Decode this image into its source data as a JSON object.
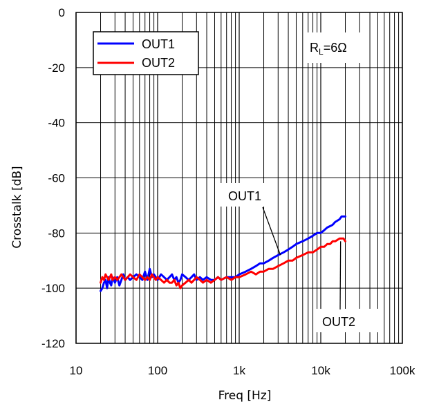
{
  "chart_data": {
    "type": "line",
    "title": "",
    "xlabel": "Freq [Hz]",
    "ylabel": "Crosstalk [dB]",
    "x_scale": "log",
    "xlim": [
      10,
      100000
    ],
    "ylim": [
      -120,
      0
    ],
    "grid": true,
    "x_ticks": [
      10,
      100,
      1000,
      10000,
      100000
    ],
    "x_tick_labels": [
      "10",
      "100",
      "1k",
      "10k",
      "100k"
    ],
    "y_ticks": [
      0,
      -20,
      -40,
      -60,
      -80,
      -100,
      -120
    ],
    "y_tick_labels": [
      "0",
      "-20",
      "-40",
      "-60",
      "-80",
      "-100",
      "-120"
    ],
    "legend_position": "top-left",
    "condition": {
      "main": "R",
      "sub": "L",
      "rest": "=6Ω"
    },
    "series": [
      {
        "name": "OUT1",
        "color": "#0000ff",
        "x": [
          20,
          21,
          22,
          23,
          24,
          25,
          26,
          27,
          28,
          30,
          32,
          34,
          36,
          38,
          40,
          43,
          46,
          50,
          55,
          60,
          65,
          70,
          75,
          80,
          85,
          90,
          95,
          100,
          110,
          120,
          130,
          140,
          150,
          160,
          170,
          180,
          190,
          200,
          220,
          240,
          260,
          280,
          300,
          330,
          360,
          400,
          450,
          500,
          550,
          600,
          700,
          800,
          900,
          1000,
          1200,
          1400,
          1600,
          1800,
          2000,
          2300,
          2600,
          3000,
          3500,
          4000,
          4500,
          5000,
          6000,
          7000,
          8000,
          9000,
          10000,
          11000,
          12000,
          13000,
          14000,
          15000,
          16000,
          17000,
          18000,
          19000,
          20000
        ],
        "y": [
          -101,
          -100,
          -98,
          -97,
          -100,
          -96,
          -98,
          -99,
          -96,
          -98,
          -96,
          -99,
          -97,
          -95,
          -97,
          -96,
          -97,
          -96,
          -95,
          -96,
          -97,
          -94,
          -97,
          -93,
          -96,
          -95,
          -96,
          -97,
          -95,
          -96,
          -97,
          -96,
          -95,
          -97,
          -96,
          -98,
          -97,
          -95,
          -96,
          -97,
          -96,
          -95,
          -97,
          -96,
          -97,
          -96,
          -97,
          -97,
          -96,
          -97,
          -96,
          -96,
          -96,
          -95,
          -94,
          -93,
          -92,
          -91,
          -91,
          -90,
          -89,
          -88,
          -87,
          -86,
          -85,
          -84,
          -83,
          -82,
          -81,
          -80,
          -80,
          -79,
          -78,
          -77.5,
          -77,
          -76,
          -75.5,
          -75,
          -74,
          -74,
          -74
        ]
      },
      {
        "name": "OUT2",
        "color": "#ff0000",
        "x": [
          20,
          21,
          22,
          23,
          24,
          25,
          26,
          27,
          28,
          30,
          32,
          34,
          36,
          38,
          40,
          43,
          46,
          50,
          55,
          60,
          65,
          70,
          75,
          80,
          85,
          90,
          95,
          100,
          110,
          120,
          130,
          140,
          150,
          160,
          170,
          180,
          190,
          200,
          220,
          240,
          260,
          280,
          300,
          330,
          360,
          400,
          450,
          500,
          550,
          600,
          700,
          800,
          900,
          1000,
          1200,
          1400,
          1600,
          1800,
          2000,
          2300,
          2600,
          3000,
          3500,
          4000,
          4500,
          5000,
          6000,
          7000,
          8000,
          9000,
          10000,
          11000,
          12000,
          13000,
          14000,
          15000,
          16000,
          17000,
          18000,
          19000,
          20000
        ],
        "y": [
          -98,
          -96,
          -97,
          -95,
          -96,
          -97,
          -96,
          -95,
          -97,
          -96,
          -97,
          -96,
          -95,
          -96,
          -97,
          -96,
          -95,
          -96,
          -97,
          -95,
          -96,
          -97,
          -96,
          -97,
          -95,
          -96,
          -97,
          -96,
          -97,
          -98,
          -97,
          -98,
          -98,
          -97,
          -99,
          -98,
          -100,
          -99,
          -98,
          -97,
          -98,
          -97,
          -96,
          -97,
          -98,
          -97,
          -98,
          -97,
          -96,
          -97,
          -96,
          -97,
          -96,
          -96,
          -95,
          -94,
          -95,
          -94,
          -94,
          -93,
          -93,
          -92,
          -91,
          -90,
          -90,
          -89,
          -88,
          -87,
          -87,
          -86,
          -85,
          -85,
          -84,
          -84,
          -83,
          -83,
          -82.5,
          -82,
          -82,
          -82,
          -83
        ]
      }
    ],
    "annotations": [
      {
        "text": "OUT1",
        "series": "OUT1",
        "x": 3200,
        "y": -88
      },
      {
        "text": "OUT2",
        "series": "OUT2",
        "x": 17500,
        "y": -83
      }
    ]
  }
}
